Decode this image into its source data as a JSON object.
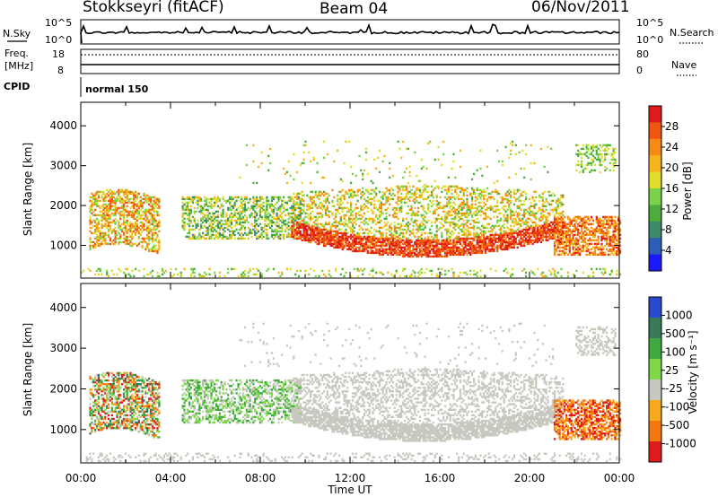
{
  "header": {
    "station": "Stokkseyri (fitACF)",
    "beam": "Beam 04",
    "date": "06/Nov/2011"
  },
  "top_panel": {
    "left_label": "N.Sky",
    "right_label": "N.Search",
    "left_tick_top": "10^5",
    "left_tick_bottom": "10^0",
    "right_tick_top": "10^5",
    "right_tick_bottom": "10^0"
  },
  "freq_panel": {
    "left_label_line1": "Freq.",
    "left_label_line2": "[MHz]",
    "right_label": "Nave",
    "left_ticks": [
      "18",
      "8"
    ],
    "right_ticks": [
      "80",
      "0"
    ]
  },
  "cpid_panel": {
    "label": "CPID",
    "mode": "normal 150"
  },
  "chart_data": [
    {
      "type": "heatmap",
      "name": "power",
      "ylabel": "Slant Range [km]",
      "ylim": [
        180,
        4590
      ],
      "yticks": [
        "1000",
        "2000",
        "3000",
        "4000"
      ],
      "xlim": [
        0,
        24
      ],
      "colorbar_label": "Power [dB]",
      "colorbar_ticks": [
        "28",
        "24",
        "20",
        "16",
        "12",
        "8",
        "4"
      ],
      "colors": [
        "#1a1aff",
        "#2a5eb8",
        "#3c8c6a",
        "#4cae3c",
        "#7cd24a",
        "#e2dc2c",
        "#f5b51b",
        "#f58a15",
        "#f2550f",
        "#e01a1a"
      ]
    },
    {
      "type": "heatmap",
      "name": "velocity",
      "ylabel": "Slant Range [km]",
      "ylim": [
        180,
        4590
      ],
      "yticks": [
        "1000",
        "2000",
        "3000",
        "4000"
      ],
      "xlim": [
        0,
        24
      ],
      "colorbar_label": "Velocity [m s⁻¹]",
      "colorbar_ticks": [
        "1000",
        "500",
        "100",
        "25",
        "-25",
        "-100",
        "-500",
        "-1000"
      ],
      "colors": [
        "#2a4ad0",
        "#3a7a5a",
        "#3faa3f",
        "#7ed84a",
        "#c8c8c0",
        "#f5a91b",
        "#f5780f",
        "#e01a1a"
      ]
    }
  ],
  "xaxis": {
    "ticks": [
      "00:00",
      "04:00",
      "08:00",
      "12:00",
      "16:00",
      "20:00",
      "00:00"
    ],
    "label": "Time UT"
  },
  "colors": {
    "ground_scatter": "#c8c8c0",
    "power_low": "#1a1aff",
    "power_high": "#e01a1a"
  }
}
